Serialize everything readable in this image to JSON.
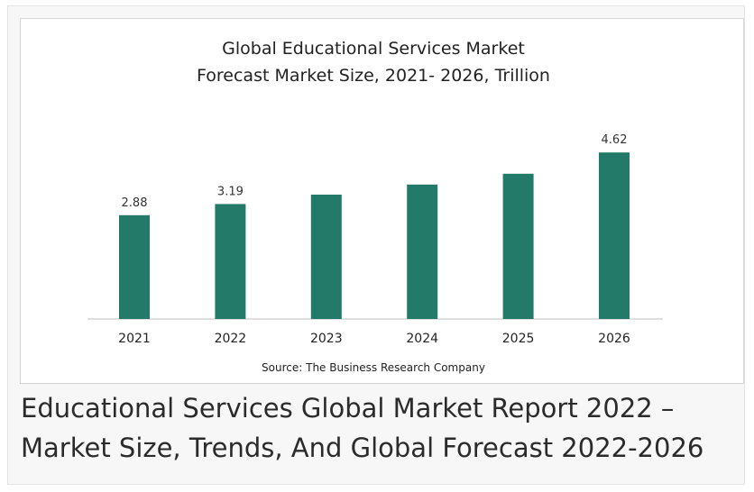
{
  "chart_data": {
    "type": "bar",
    "title_lines": [
      "Global Educational Services Market",
      "Forecast Market Size, 2021- 2026, Trillion"
    ],
    "categories": [
      "2021",
      "2022",
      "2023",
      "2024",
      "2025",
      "2026"
    ],
    "values": [
      2.88,
      3.19,
      3.45,
      3.73,
      4.03,
      4.62
    ],
    "data_labels": [
      "2.88",
      "3.19",
      "",
      "",
      "",
      "4.62"
    ],
    "ylim": [
      0,
      5.0
    ],
    "xlabel": "",
    "ylabel": "",
    "grid": false,
    "legend": "none",
    "bar_color": "#237a69",
    "source": "Source: The Business Research Company"
  },
  "caption": {
    "line1": "Educational Services Global Market Report 2022 –",
    "line2": "Market Size, Trends, And Global Forecast 2022-2026"
  }
}
